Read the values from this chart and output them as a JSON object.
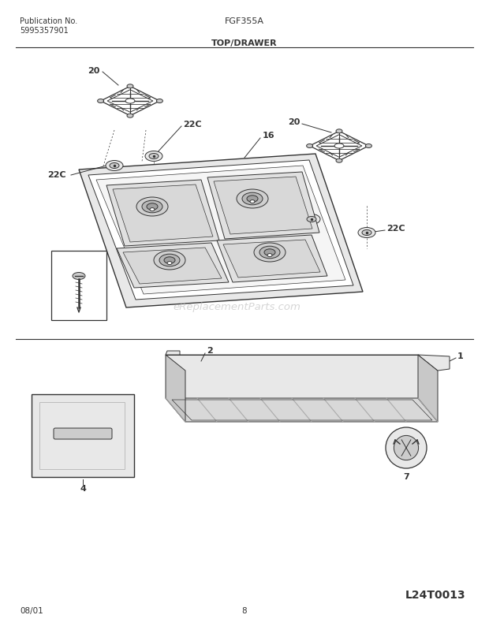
{
  "title_left1": "Publication No.",
  "title_left2": "5995357901",
  "title_center": "FGF355A",
  "title_section": "TOP/DRAWER",
  "watermark": "eReplacementParts.com",
  "bottom_left": "08/01",
  "bottom_center": "8",
  "bottom_right": "L24T0013",
  "bg_color": "#ffffff",
  "line_color": "#333333"
}
